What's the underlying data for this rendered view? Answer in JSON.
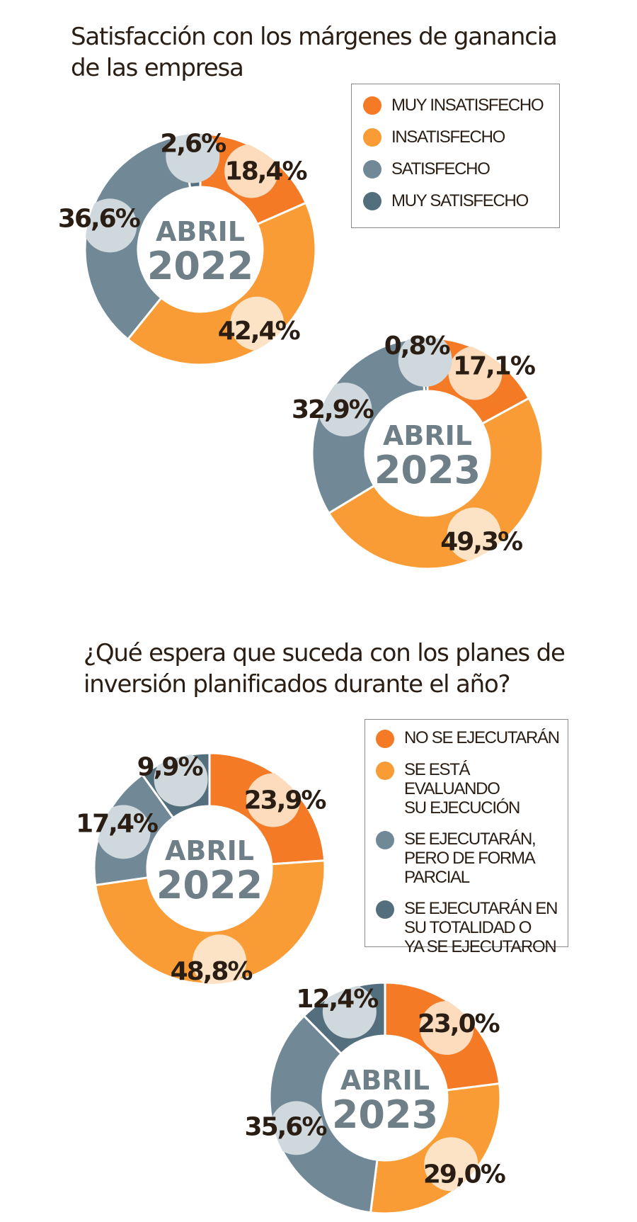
{
  "colors": {
    "muy_insatisfecho": "#f47a25",
    "insatisfecho": "#f99c36",
    "satisfecho": "#718996",
    "muy_satisfecho": "#536f7d",
    "muy_insatisfecho_light": "#fddcbd",
    "insatisfecho_light": "#fde3c6",
    "satisfecho_light": "#cfd8dc",
    "muy_satisfecho_light": "#cfd8dc"
  },
  "section1": {
    "title": "Satisfacción con los márgenes de ganancia de las empresa",
    "legend": [
      {
        "label": "MUY INSATISFECHO",
        "color": "#f47a25"
      },
      {
        "label": "INSATISFECHO",
        "color": "#f99c36"
      },
      {
        "label": "SATISFECHO",
        "color": "#718996"
      },
      {
        "label": "MUY SATISFECHO",
        "color": "#536f7d"
      }
    ]
  },
  "section2": {
    "title": "¿Qué espera que suceda con los planes de inversión planificados durante el año?",
    "legend": [
      {
        "label": "NO SE EJECUTARÁN",
        "color": "#f47a25"
      },
      {
        "label": "SE ESTÁ EVALUANDO\nSU EJECUCIÓN",
        "color": "#f99c36"
      },
      {
        "label": "SE EJECUTARÁN,\nPERO DE FORMA\nPARCIAL",
        "color": "#718996"
      },
      {
        "label": "SE EJECUTARÁN EN\nSU TOTALIDAD O\nYA SE EJECUTARON",
        "color": "#536f7d"
      }
    ]
  },
  "chart_data": [
    {
      "type": "pie",
      "title": "Satisfacción con los márgenes de ganancia de las empresa",
      "center_month": "ABRIL",
      "center_year": "2022",
      "categories": [
        "MUY INSATISFECHO",
        "INSATISFECHO",
        "SATISFECHO",
        "MUY SATISFECHO"
      ],
      "values": [
        18.4,
        42.4,
        36.6,
        2.6
      ],
      "labels": [
        "18,4%",
        "42,4%",
        "36,6%",
        "2,6%"
      ]
    },
    {
      "type": "pie",
      "title": "Satisfacción con los márgenes de ganancia de las empresa",
      "center_month": "ABRIL",
      "center_year": "2023",
      "categories": [
        "MUY INSATISFECHO",
        "INSATISFECHO",
        "SATISFECHO",
        "MUY SATISFECHO"
      ],
      "values": [
        17.1,
        49.3,
        32.9,
        0.8
      ],
      "labels": [
        "17,1%",
        "49,3%",
        "32,9%",
        "0,8%"
      ]
    },
    {
      "type": "pie",
      "title": "¿Qué espera que suceda con los planes de inversión planificados durante el año?",
      "center_month": "ABRIL",
      "center_year": "2022",
      "categories": [
        "NO SE EJECUTARÁN",
        "SE ESTÁ EVALUANDO SU EJECUCIÓN",
        "SE EJECUTARÁN, PERO DE FORMA PARCIAL",
        "SE EJECUTARÁN EN SU TOTALIDAD O YA SE EJECUTARON"
      ],
      "values": [
        23.9,
        48.8,
        17.4,
        9.9
      ],
      "labels": [
        "23,9%",
        "48,8%",
        "17,4%",
        "9,9%"
      ]
    },
    {
      "type": "pie",
      "title": "¿Qué espera que suceda con los planes de inversión planificados durante el año?",
      "center_month": "ABRIL",
      "center_year": "2023",
      "categories": [
        "NO SE EJECUTARÁN",
        "SE ESTÁ EVALUANDO SU EJECUCIÓN",
        "SE EJECUTARÁN, PERO DE FORMA PARCIAL",
        "SE EJECUTARÁN EN SU TOTALIDAD O YA SE EJECUTARON"
      ],
      "values": [
        23.0,
        29.0,
        35.6,
        12.4
      ],
      "labels": [
        "23,0%",
        "29,0%",
        "35,6%",
        "12,4%"
      ]
    }
  ]
}
